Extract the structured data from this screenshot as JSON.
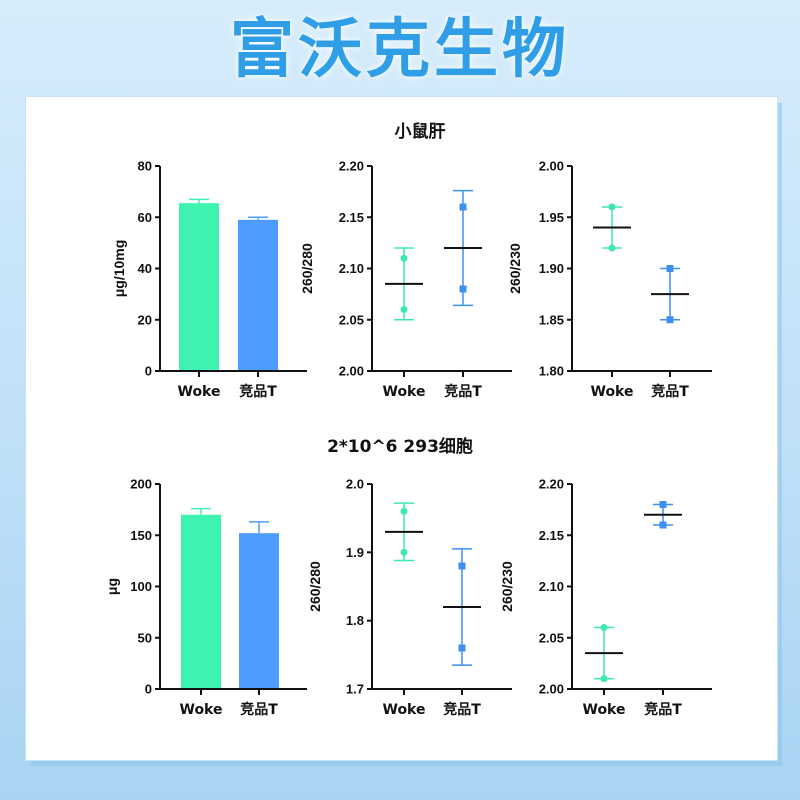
{
  "brand": {
    "title": "富沃克生物"
  },
  "colors": {
    "green": "#3ef2b0",
    "blue": "#4f9cff",
    "green_dot": "#3ee8ad",
    "blue_dot": "#3d8ff0",
    "title_blue": "#2f9ee6"
  },
  "sections": [
    {
      "title": "小鼠肝"
    },
    {
      "title": "2*10^6 293细胞"
    }
  ],
  "chart_data": [
    {
      "type": "bar",
      "section": 0,
      "ylabel": "μg/10mg",
      "ylim": [
        0,
        80
      ],
      "yticks": [
        "0",
        "20",
        "40",
        "60",
        "80"
      ],
      "categories": [
        "Woke",
        "竞品T"
      ],
      "values": [
        65.5,
        59
      ],
      "errors": [
        1.5,
        1
      ]
    },
    {
      "type": "scatter",
      "section": 0,
      "ylabel": "260/280",
      "ylim": [
        2.0,
        2.2
      ],
      "yticks": [
        "2.00",
        "2.05",
        "2.10",
        "2.15",
        "2.20"
      ],
      "categories": [
        "Woke",
        "竞品T"
      ],
      "groups": [
        {
          "points": [
            2.11,
            2.06
          ],
          "mean": 2.085,
          "err": [
            2.05,
            2.12
          ]
        },
        {
          "points": [
            2.16,
            2.08
          ],
          "mean": 2.12,
          "err": [
            2.064,
            2.176
          ]
        }
      ]
    },
    {
      "type": "scatter",
      "section": 0,
      "ylabel": "260/230",
      "ylim": [
        1.8,
        2.0
      ],
      "yticks": [
        "1.80",
        "1.85",
        "1.90",
        "1.95",
        "2.00"
      ],
      "categories": [
        "Woke",
        "竞品T"
      ],
      "groups": [
        {
          "points": [
            1.96,
            1.92
          ],
          "mean": 1.94,
          "err": [
            1.92,
            1.96
          ]
        },
        {
          "points": [
            1.9,
            1.85
          ],
          "mean": 1.875,
          "err": [
            1.85,
            1.9
          ]
        }
      ]
    },
    {
      "type": "bar",
      "section": 1,
      "ylabel": "μg",
      "ylim": [
        0,
        200
      ],
      "yticks": [
        "0",
        "50",
        "100",
        "150",
        "200"
      ],
      "categories": [
        "Woke",
        "竞品T"
      ],
      "values": [
        170,
        152
      ],
      "errors": [
        6,
        11
      ]
    },
    {
      "type": "scatter",
      "section": 1,
      "ylabel": "260/280",
      "ylim": [
        1.7,
        2.0
      ],
      "yticks": [
        "1.7",
        "1.8",
        "1.9",
        "2.0"
      ],
      "categories": [
        "Woke",
        "竞品T"
      ],
      "groups": [
        {
          "points": [
            1.96,
            1.9
          ],
          "mean": 1.93,
          "err": [
            1.888,
            1.972
          ]
        },
        {
          "points": [
            1.88,
            1.76
          ],
          "mean": 1.82,
          "err": [
            1.735,
            1.905
          ]
        }
      ]
    },
    {
      "type": "scatter",
      "section": 1,
      "ylabel": "260/230",
      "ylim": [
        2.0,
        2.2
      ],
      "yticks": [
        "2.00",
        "2.05",
        "2.10",
        "2.15",
        "2.20"
      ],
      "categories": [
        "Woke",
        "竞品T"
      ],
      "groups": [
        {
          "points": [
            2.06,
            2.01
          ],
          "mean": 2.035,
          "err": [
            2.01,
            2.06
          ]
        },
        {
          "points": [
            2.18,
            2.16
          ],
          "mean": 2.17,
          "err": [
            2.16,
            2.18
          ]
        }
      ]
    }
  ]
}
